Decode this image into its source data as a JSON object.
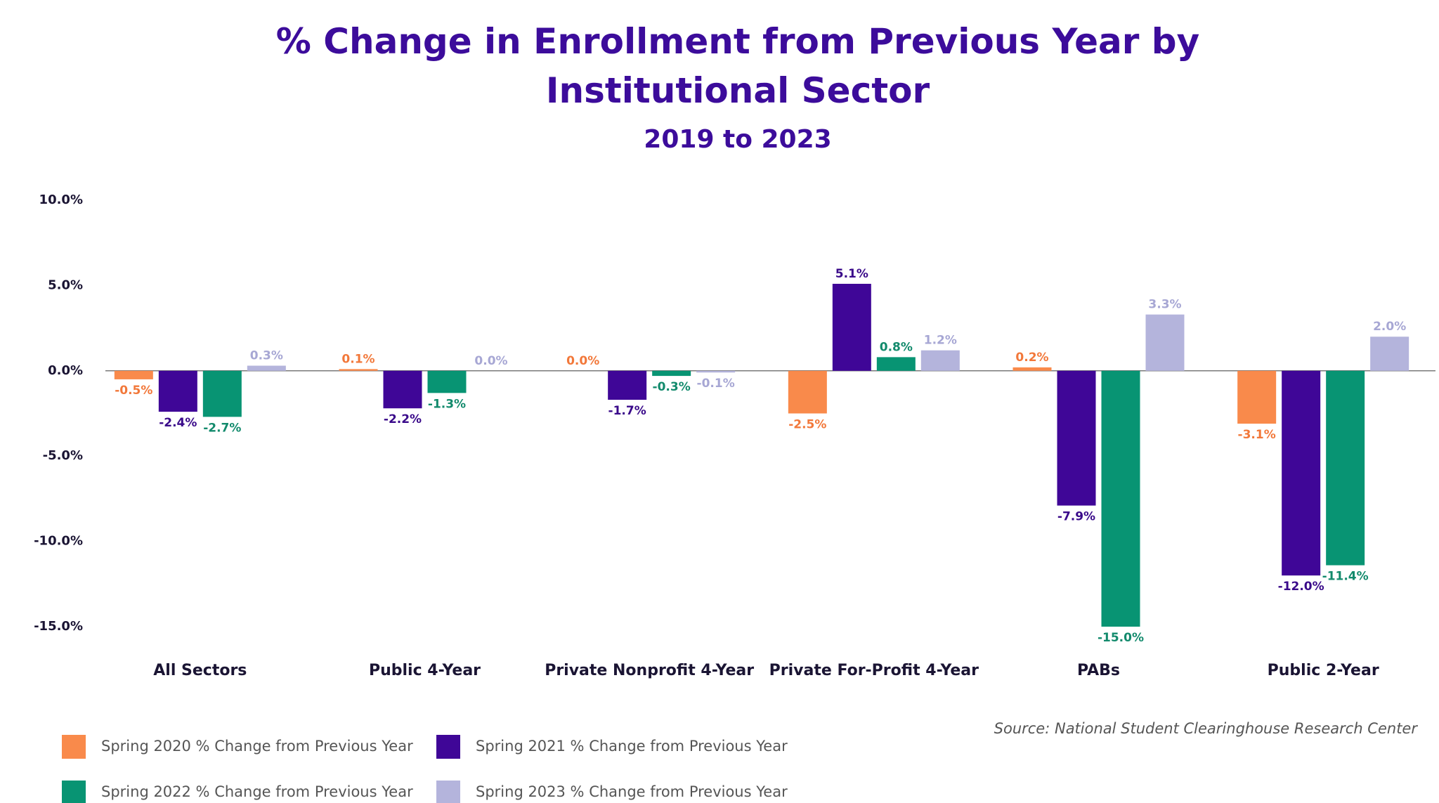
{
  "chart_data": {
    "type": "bar",
    "title": "% Change in Enrollment from Previous Year by Institutional Sector",
    "subtitle": "2019 to 2023",
    "source": "Source: National Student Clearinghouse Research Center",
    "categories": [
      "All Sectors",
      "Public 4-Year",
      "Private Nonprofit 4-Year",
      "Private For-Profit 4-Year",
      "PABs",
      "Public 2-Year"
    ],
    "series": [
      {
        "name": "Spring 2020 % Change from Previous Year",
        "color": "#f98a4b",
        "label_color": "#f2783a",
        "values": [
          -0.5,
          0.1,
          0.0,
          -2.5,
          0.2,
          -3.1
        ],
        "value_labels": [
          "-0.5%",
          "0.1%",
          "0.0%",
          "-2.5%",
          "0.2%",
          "-3.1%"
        ]
      },
      {
        "name": "Spring 2021 % Change from Previous Year",
        "color": "#3f0697",
        "label_color": "#3a0a8a",
        "values": [
          -2.4,
          -2.2,
          -1.7,
          5.1,
          -7.9,
          -12.0
        ],
        "value_labels": [
          "-2.4%",
          "-2.2%",
          "-1.7%",
          "5.1%",
          "-7.9%",
          "-12.0%"
        ]
      },
      {
        "name": "Spring 2022 % Change from Previous Year",
        "color": "#089473",
        "label_color": "#128a6c",
        "values": [
          -2.7,
          -1.3,
          -0.3,
          0.8,
          -15.0,
          -11.4
        ],
        "value_labels": [
          "-2.7%",
          "-1.3%",
          "-0.3%",
          "0.8%",
          "-15.0%",
          "-11.4%"
        ]
      },
      {
        "name": "Spring 2023 % Change from Previous Year",
        "color": "#b4b4dc",
        "label_color": "#a7a7d4",
        "values": [
          0.3,
          0.0,
          -0.1,
          1.2,
          3.3,
          2.0
        ],
        "value_labels": [
          "0.3%",
          "0.0%",
          "-0.1%",
          "1.2%",
          "3.3%",
          "2.0%"
        ]
      }
    ],
    "ylim": [
      -15,
      10
    ],
    "yticks": [
      {
        "value": 10,
        "label": "10.0%"
      },
      {
        "value": 5,
        "label": "5.0%"
      },
      {
        "value": 0,
        "label": "0.0%"
      },
      {
        "value": -5,
        "label": "-5.0%"
      },
      {
        "value": -10,
        "label": "-10.0%"
      },
      {
        "value": -15,
        "label": "-15.0%"
      }
    ]
  }
}
